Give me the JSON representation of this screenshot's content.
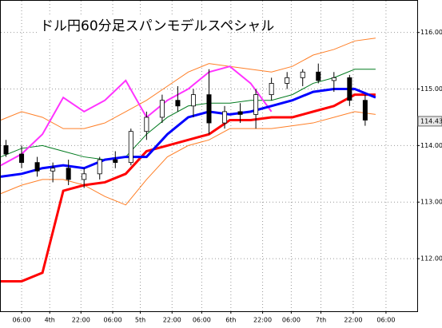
{
  "chart_data": {
    "type": "candlestick",
    "title": "ドル円60分足スパンモデルスペシャル",
    "xlim": [
      0,
      80
    ],
    "ylim": [
      111.07,
      116.56
    ],
    "yticks": [
      {
        "value": 112,
        "label": "112.00"
      },
      {
        "value": 113,
        "label": "113.00"
      },
      {
        "value": 114,
        "label": "114.00"
      },
      {
        "value": 115,
        "label": "115.00"
      },
      {
        "value": 116,
        "label": "116.00"
      }
    ],
    "xticks": [
      {
        "value": 4,
        "label": "06:00"
      },
      {
        "value": 9.4,
        "label": "4th"
      },
      {
        "value": 15.4,
        "label": "22:00"
      },
      {
        "value": 21.5,
        "label": "06:00"
      },
      {
        "value": 26.8,
        "label": "5th"
      },
      {
        "value": 32.9,
        "label": "22:00"
      },
      {
        "value": 38.6,
        "label": "06:00"
      },
      {
        "value": 44.2,
        "label": "6th"
      },
      {
        "value": 50.3,
        "label": "22:00"
      },
      {
        "value": 55.8,
        "label": "06:00"
      },
      {
        "value": 61.5,
        "label": "7th"
      },
      {
        "value": 67.7,
        "label": "22:00"
      },
      {
        "value": 74,
        "label": "06:00"
      }
    ],
    "grid": true,
    "last_price": 114.43,
    "candles": {
      "x": [
        1,
        4,
        7,
        10,
        13,
        16,
        19,
        22,
        25,
        28,
        31,
        34,
        37,
        40,
        43,
        46,
        49,
        52,
        55,
        58,
        61,
        64,
        67,
        70
      ],
      "open": [
        114.0,
        113.85,
        113.7,
        113.55,
        113.6,
        113.4,
        113.5,
        113.75,
        113.7,
        114.25,
        114.5,
        114.8,
        114.7,
        114.9,
        114.4,
        114.6,
        114.55,
        114.9,
        115.1,
        115.2,
        115.3,
        115.15,
        115.2,
        114.8
      ],
      "high": [
        114.1,
        114.0,
        113.8,
        113.7,
        113.75,
        113.6,
        113.8,
        113.9,
        114.3,
        114.6,
        114.9,
        115.05,
        115.0,
        115.35,
        114.7,
        114.75,
        115.0,
        115.2,
        115.3,
        115.35,
        115.45,
        115.3,
        115.25,
        114.9
      ],
      "low": [
        113.8,
        113.6,
        113.45,
        113.35,
        113.3,
        113.25,
        113.4,
        113.6,
        113.65,
        114.1,
        114.4,
        114.6,
        114.5,
        114.2,
        114.3,
        114.4,
        114.3,
        114.8,
        115.0,
        115.05,
        115.1,
        114.95,
        114.7,
        114.35
      ],
      "close": [
        113.85,
        113.7,
        113.55,
        113.6,
        113.4,
        113.5,
        113.75,
        113.7,
        114.25,
        114.5,
        114.8,
        114.7,
        114.9,
        114.4,
        114.6,
        114.55,
        114.9,
        115.1,
        115.2,
        115.3,
        115.15,
        115.2,
        114.8,
        114.45
      ]
    },
    "lines": {
      "x": [
        0,
        4,
        8,
        12,
        16,
        20,
        24,
        28,
        32,
        36,
        40,
        44,
        48,
        52,
        56,
        60,
        64,
        68,
        72
      ],
      "series": [
        {
          "color": "#ff7f27",
          "values": [
            114.45,
            114.6,
            114.5,
            114.3,
            114.3,
            114.4,
            114.6,
            114.8,
            115.05,
            115.3,
            115.45,
            115.4,
            115.35,
            115.3,
            115.4,
            115.6,
            115.7,
            115.85,
            115.9
          ]
        },
        {
          "color": "#ff7f27",
          "values": [
            113.15,
            113.3,
            113.4,
            113.4,
            113.3,
            113.1,
            112.95,
            113.4,
            113.8,
            114.0,
            114.1,
            114.3,
            114.3,
            114.3,
            114.35,
            114.4,
            114.5,
            114.6,
            114.55
          ]
        },
        {
          "color": "#007a1e",
          "values": [
            113.8,
            113.95,
            114.0,
            113.9,
            113.8,
            113.75,
            113.8,
            114.2,
            114.5,
            114.7,
            114.75,
            114.75,
            114.8,
            114.8,
            114.9,
            115.1,
            115.2,
            115.35,
            115.35
          ]
        },
        {
          "color": "#ff33ff",
          "values": [
            113.65,
            113.85,
            114.2,
            114.85,
            114.6,
            114.8,
            115.15,
            114.5,
            114.8,
            115.0,
            115.3,
            115.4,
            115.1,
            114.6,
            null,
            null,
            null,
            null,
            null
          ]
        },
        {
          "color": "#ff0000",
          "values": [
            111.6,
            111.6,
            111.75,
            113.2,
            113.3,
            113.35,
            113.5,
            113.9,
            114.0,
            114.1,
            114.2,
            114.45,
            114.45,
            114.5,
            114.5,
            114.6,
            114.7,
            114.9,
            114.9
          ]
        },
        {
          "color": "#0000ff",
          "values": [
            113.45,
            113.5,
            113.6,
            113.65,
            113.6,
            113.75,
            113.8,
            113.8,
            114.2,
            114.5,
            114.6,
            114.55,
            114.6,
            114.7,
            114.8,
            114.95,
            115.0,
            115.0,
            114.85
          ]
        }
      ]
    }
  }
}
